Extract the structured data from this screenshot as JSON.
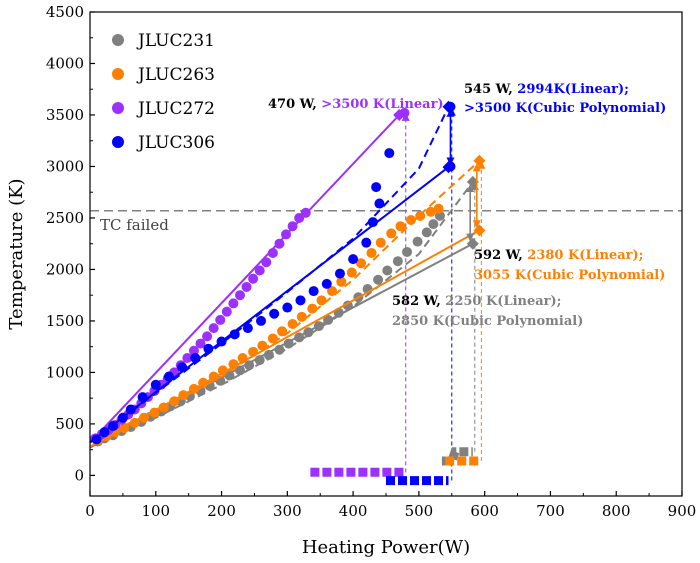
{
  "chart_data": {
    "type": "scatter",
    "xlabel": "Heating Power(W)",
    "ylabel": "Temperature (K)",
    "xlim": [
      0,
      900
    ],
    "ylim": [
      -200,
      4500
    ],
    "xticks": [
      0,
      100,
      200,
      300,
      400,
      500,
      600,
      700,
      800,
      900
    ],
    "yticks": [
      0,
      500,
      1000,
      1500,
      2000,
      2500,
      3000,
      3500,
      4000,
      4500
    ],
    "grid": false,
    "legend_position": "top-left",
    "reference_line": {
      "y": 2570,
      "label": "TC failed",
      "color": "#808080",
      "style": "dashed"
    },
    "series": [
      {
        "name": "JLUC231",
        "color": "#808080",
        "points": [
          [
            12,
            330
          ],
          [
            22,
            360
          ],
          [
            35,
            390
          ],
          [
            48,
            430
          ],
          [
            62,
            470
          ],
          [
            78,
            520
          ],
          [
            92,
            570
          ],
          [
            108,
            620
          ],
          [
            122,
            670
          ],
          [
            138,
            720
          ],
          [
            152,
            770
          ],
          [
            168,
            820
          ],
          [
            182,
            870
          ],
          [
            198,
            920
          ],
          [
            212,
            970
          ],
          [
            228,
            1020
          ],
          [
            242,
            1070
          ],
          [
            258,
            1120
          ],
          [
            272,
            1170
          ],
          [
            288,
            1220
          ],
          [
            302,
            1280
          ],
          [
            318,
            1340
          ],
          [
            332,
            1390
          ],
          [
            348,
            1450
          ],
          [
            362,
            1510
          ],
          [
            378,
            1580
          ],
          [
            392,
            1650
          ],
          [
            408,
            1730
          ],
          [
            422,
            1810
          ],
          [
            438,
            1900
          ],
          [
            452,
            1990
          ],
          [
            468,
            2080
          ],
          [
            482,
            2170
          ],
          [
            498,
            2270
          ],
          [
            512,
            2360
          ],
          [
            522,
            2440
          ],
          [
            532,
            2520
          ]
        ],
        "linear_fit": [
          [
            0,
            270
          ],
          [
            582,
            2250
          ]
        ],
        "poly_fit": [
          [
            0,
            330
          ],
          [
            100,
            560
          ],
          [
            200,
            880
          ],
          [
            300,
            1230
          ],
          [
            400,
            1640
          ],
          [
            500,
            2150
          ],
          [
            582,
            2850
          ]
        ],
        "step_line": [
          [
            535,
            140
          ],
          [
            550,
            140
          ],
          [
            555,
            230
          ],
          [
            582,
            230
          ]
        ]
      },
      {
        "name": "JLUC263",
        "color": "#FF8000",
        "points": [
          [
            12,
            340
          ],
          [
            25,
            380
          ],
          [
            38,
            420
          ],
          [
            52,
            460
          ],
          [
            68,
            510
          ],
          [
            82,
            560
          ],
          [
            98,
            610
          ],
          [
            112,
            660
          ],
          [
            128,
            720
          ],
          [
            142,
            780
          ],
          [
            158,
            840
          ],
          [
            172,
            900
          ],
          [
            188,
            960
          ],
          [
            202,
            1020
          ],
          [
            218,
            1080
          ],
          [
            232,
            1140
          ],
          [
            248,
            1200
          ],
          [
            262,
            1260
          ],
          [
            278,
            1330
          ],
          [
            292,
            1400
          ],
          [
            308,
            1470
          ],
          [
            322,
            1540
          ],
          [
            338,
            1620
          ],
          [
            352,
            1700
          ],
          [
            368,
            1790
          ],
          [
            382,
            1880
          ],
          [
            398,
            1970
          ],
          [
            412,
            2060
          ],
          [
            428,
            2160
          ],
          [
            442,
            2260
          ],
          [
            458,
            2350
          ],
          [
            472,
            2420
          ],
          [
            488,
            2480
          ],
          [
            502,
            2520
          ],
          [
            518,
            2560
          ],
          [
            530,
            2590
          ]
        ],
        "linear_fit": [
          [
            0,
            280
          ],
          [
            592,
            2380
          ]
        ],
        "poly_fit": [
          [
            0,
            340
          ],
          [
            100,
            620
          ],
          [
            200,
            960
          ],
          [
            300,
            1380
          ],
          [
            400,
            1900
          ],
          [
            500,
            2520
          ],
          [
            592,
            3055
          ]
        ],
        "step_line": [
          [
            540,
            140
          ],
          [
            592,
            140
          ]
        ]
      },
      {
        "name": "JLUC272",
        "color": "#9B30FF",
        "points": [
          [
            8,
            360
          ],
          [
            18,
            400
          ],
          [
            28,
            440
          ],
          [
            38,
            490
          ],
          [
            48,
            540
          ],
          [
            58,
            590
          ],
          [
            68,
            640
          ],
          [
            78,
            700
          ],
          [
            88,
            760
          ],
          [
            98,
            820
          ],
          [
            108,
            880
          ],
          [
            118,
            940
          ],
          [
            128,
            1000
          ],
          [
            138,
            1070
          ],
          [
            148,
            1140
          ],
          [
            158,
            1210
          ],
          [
            168,
            1280
          ],
          [
            178,
            1350
          ],
          [
            188,
            1430
          ],
          [
            198,
            1510
          ],
          [
            208,
            1590
          ],
          [
            218,
            1670
          ],
          [
            228,
            1750
          ],
          [
            238,
            1830
          ],
          [
            248,
            1910
          ],
          [
            258,
            1990
          ],
          [
            268,
            2070
          ],
          [
            278,
            2160
          ],
          [
            288,
            2250
          ],
          [
            298,
            2340
          ],
          [
            308,
            2420
          ],
          [
            318,
            2500
          ],
          [
            328,
            2550
          ],
          [
            478,
            3520
          ]
        ],
        "linear_fit": [
          [
            0,
            320
          ],
          [
            470,
            3500
          ]
        ],
        "step_line": [
          [
            335,
            30
          ],
          [
            478,
            30
          ]
        ]
      },
      {
        "name": "JLUC306",
        "color": "#0000FF",
        "points": [
          [
            10,
            350
          ],
          [
            22,
            420
          ],
          [
            35,
            480
          ],
          [
            50,
            560
          ],
          [
            62,
            640
          ],
          [
            80,
            760
          ],
          [
            100,
            880
          ],
          [
            120,
            960
          ],
          [
            140,
            1050
          ],
          [
            160,
            1140
          ],
          [
            180,
            1230
          ],
          [
            200,
            1300
          ],
          [
            220,
            1370
          ],
          [
            240,
            1430
          ],
          [
            260,
            1500
          ],
          [
            280,
            1570
          ],
          [
            300,
            1630
          ],
          [
            320,
            1700
          ],
          [
            340,
            1790
          ],
          [
            360,
            1860
          ],
          [
            380,
            1960
          ],
          [
            400,
            2100
          ],
          [
            420,
            2260
          ],
          [
            430,
            2460
          ],
          [
            440,
            2640
          ],
          [
            435,
            2800
          ],
          [
            455,
            3130
          ],
          [
            548,
            3580
          ],
          [
            548,
            3000
          ]
        ],
        "linear_fit": [
          [
            0,
            320
          ],
          [
            545,
            2994
          ]
        ],
        "poly_fit": [
          [
            0,
            320
          ],
          [
            100,
            800
          ],
          [
            200,
            1280
          ],
          [
            300,
            1780
          ],
          [
            400,
            2300
          ],
          [
            500,
            2980
          ],
          [
            545,
            3580
          ]
        ],
        "step_line": [
          [
            450,
            -50
          ],
          [
            545,
            -50
          ]
        ]
      }
    ],
    "annotations": [
      {
        "id": "a272",
        "parts": [
          {
            "text": "470 W, ",
            "color": "#000000"
          },
          {
            "text": ">3500 K(Linear)",
            "color": "#9B30FF"
          }
        ]
      },
      {
        "id": "a306a",
        "parts": [
          {
            "text": "545 W, ",
            "color": "#000000"
          },
          {
            "text": "2994K(Linear);",
            "color": "#0000FF"
          }
        ]
      },
      {
        "id": "a306b",
        "parts": [
          {
            "text": ">3500 K(Cubic Polynomial)",
            "color": "#0000FF"
          }
        ]
      },
      {
        "id": "a263a",
        "parts": [
          {
            "text": "592 W, ",
            "color": "#000000"
          },
          {
            "text": "2380 K(Linear);",
            "color": "#FF8000"
          }
        ]
      },
      {
        "id": "a263b",
        "parts": [
          {
            "text": "3055 K(Cubic Polynomial)",
            "color": "#FF8000"
          }
        ]
      },
      {
        "id": "a231a",
        "parts": [
          {
            "text": "582 W, ",
            "color": "#000000"
          },
          {
            "text": "2250 K(Linear);",
            "color": "#808080"
          }
        ]
      },
      {
        "id": "a231b",
        "parts": [
          {
            "text": "2850 K(Cubic Polynomial)",
            "color": "#808080"
          }
        ]
      }
    ],
    "vertical_markers": [
      {
        "x": 480,
        "y_from": 30,
        "y_to": 3520,
        "color": "#9B30FF"
      },
      {
        "x": 550,
        "y_from": -50,
        "y_to": 3570,
        "color": "#0000FF"
      },
      {
        "x": 585,
        "y_from": 230,
        "y_to": 2850,
        "color": "#808080"
      },
      {
        "x": 595,
        "y_from": 140,
        "y_to": 3055,
        "color": "#FF8000"
      }
    ]
  }
}
